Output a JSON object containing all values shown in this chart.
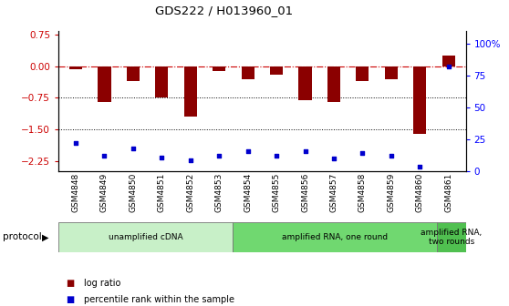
{
  "title": "GDS222 / H013960_01",
  "samples": [
    "GSM4848",
    "GSM4849",
    "GSM4850",
    "GSM4851",
    "GSM4852",
    "GSM4853",
    "GSM4854",
    "GSM4855",
    "GSM4856",
    "GSM4857",
    "GSM4858",
    "GSM4859",
    "GSM4860",
    "GSM4861"
  ],
  "log_ratio": [
    -0.07,
    -0.85,
    -0.35,
    -0.75,
    -1.2,
    -0.12,
    -0.3,
    -0.2,
    -0.8,
    -0.85,
    -0.35,
    -0.3,
    -1.6,
    0.25
  ],
  "percentile_rank": [
    22,
    12,
    18,
    11,
    9,
    12,
    16,
    12,
    16,
    10,
    14,
    12,
    4,
    82
  ],
  "ylim_left": [
    -2.5,
    0.85
  ],
  "ylim_right": [
    0,
    110
  ],
  "yticks_left": [
    0.75,
    0,
    -0.75,
    -1.5,
    -2.25
  ],
  "yticks_right": [
    100,
    75,
    50,
    25,
    0
  ],
  "dotted_lines": [
    -0.75,
    -1.5
  ],
  "bar_color": "#8B0000",
  "scatter_color": "#0000CD",
  "protocol_groups": [
    {
      "label": "unamplified cDNA",
      "start": 0,
      "end": 5,
      "color": "#c8f0c8"
    },
    {
      "label": "amplified RNA, one round",
      "start": 6,
      "end": 12,
      "color": "#70d870"
    },
    {
      "label": "amplified RNA,\ntwo rounds",
      "start": 13,
      "end": 13,
      "color": "#50c050"
    }
  ],
  "protocol_label": "protocol",
  "legend_items": [
    {
      "label": "log ratio",
      "color": "#8B0000"
    },
    {
      "label": "percentile rank within the sample",
      "color": "#0000CD"
    }
  ]
}
